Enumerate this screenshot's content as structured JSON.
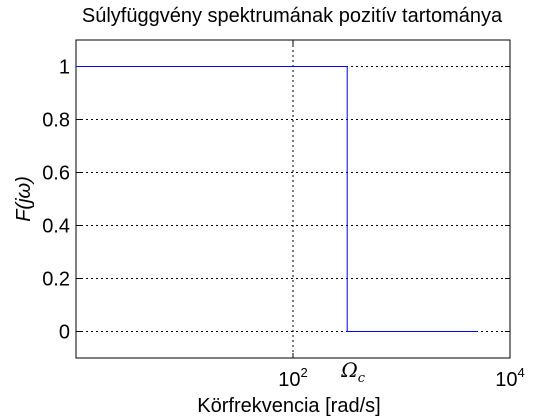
{
  "chart_data": {
    "type": "line",
    "title": "Súlyfüggvény spektrumának pozitív tartománya",
    "xlabel": "Körfrekvencia [rad/s]",
    "ylabel": "F(jω)",
    "xscale": "log",
    "xlim": [
      1,
      10000
    ],
    "ylim": [
      -0.1,
      1.1
    ],
    "grid": true,
    "x_ticks": [
      {
        "value": 100,
        "base": "10",
        "exp": "2"
      },
      {
        "value": 10000,
        "base": "10",
        "exp": "4"
      }
    ],
    "y_ticks": [
      0,
      0.2,
      0.4,
      0.6,
      0.8,
      1
    ],
    "annotations": [
      {
        "text": "Ω",
        "sub": "c",
        "x": 316
      }
    ],
    "series": [
      {
        "color": "#0000ff",
        "points": [
          [
            1,
            1
          ],
          [
            316,
            1
          ],
          [
            316,
            0
          ],
          [
            5000,
            0
          ]
        ]
      }
    ]
  }
}
